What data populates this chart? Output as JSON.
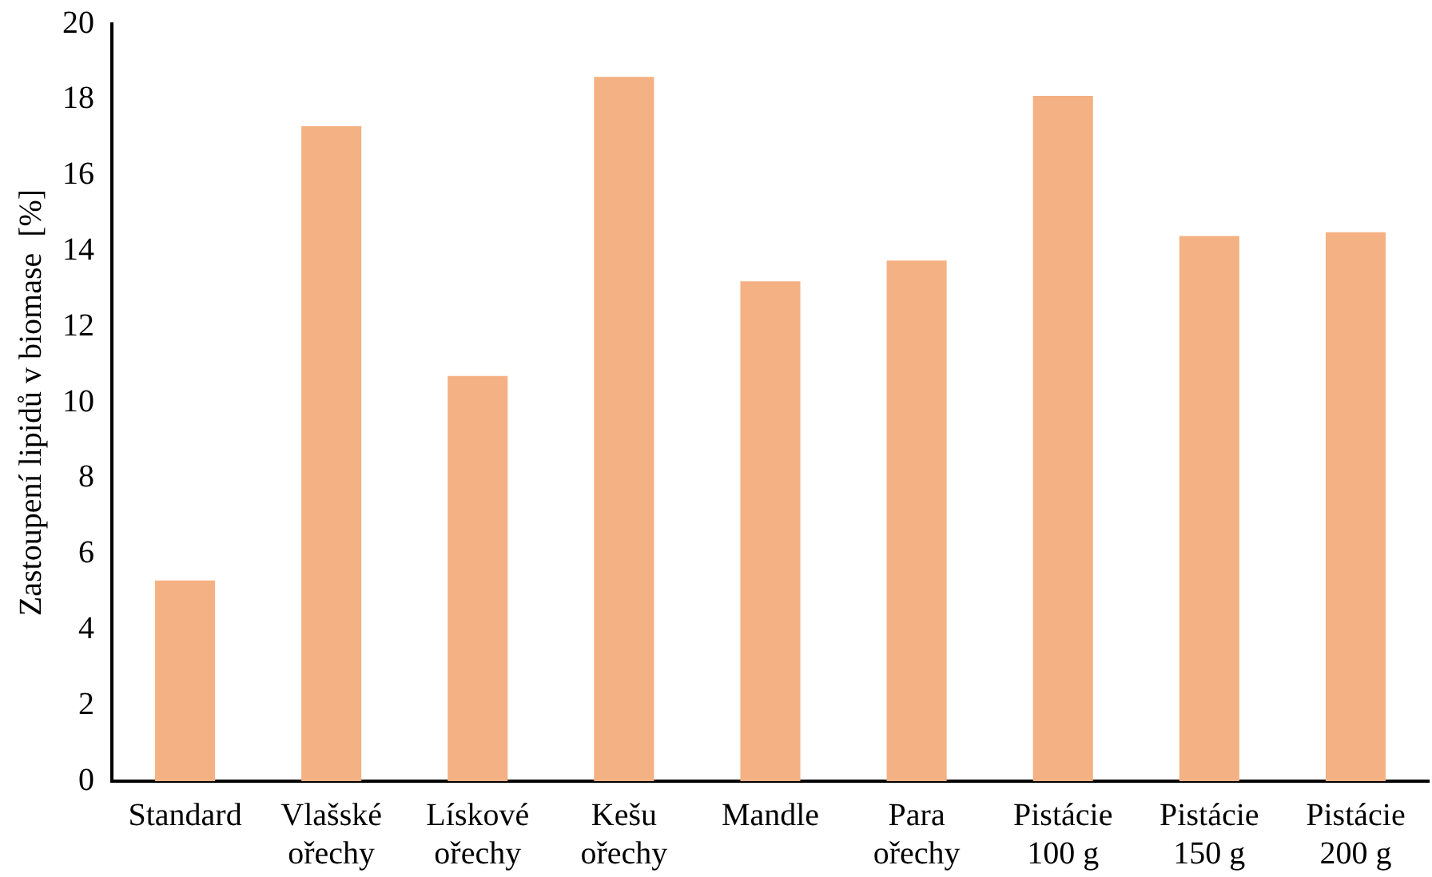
{
  "chart_data": {
    "type": "bar",
    "ylabel": "Zastoupení lipidů v biomase  [%]",
    "categories": [
      "Standard",
      "Vlašské ořechy",
      "Lískové ořechy",
      "Kešu ořechy",
      "Mandle",
      "Para ořechy",
      "Pistácie 100 g",
      "Pistácie 150 g",
      "Pistácie 200 g"
    ],
    "values": [
      5.3,
      17.3,
      10.7,
      18.6,
      13.2,
      13.75,
      18.1,
      14.4,
      14.5
    ],
    "color": "#f4b183",
    "ylim": [
      0,
      20
    ],
    "yticks": [
      0,
      2,
      4,
      6,
      8,
      10,
      12,
      14,
      16,
      18,
      20
    ],
    "grid": false,
    "legend": false
  }
}
